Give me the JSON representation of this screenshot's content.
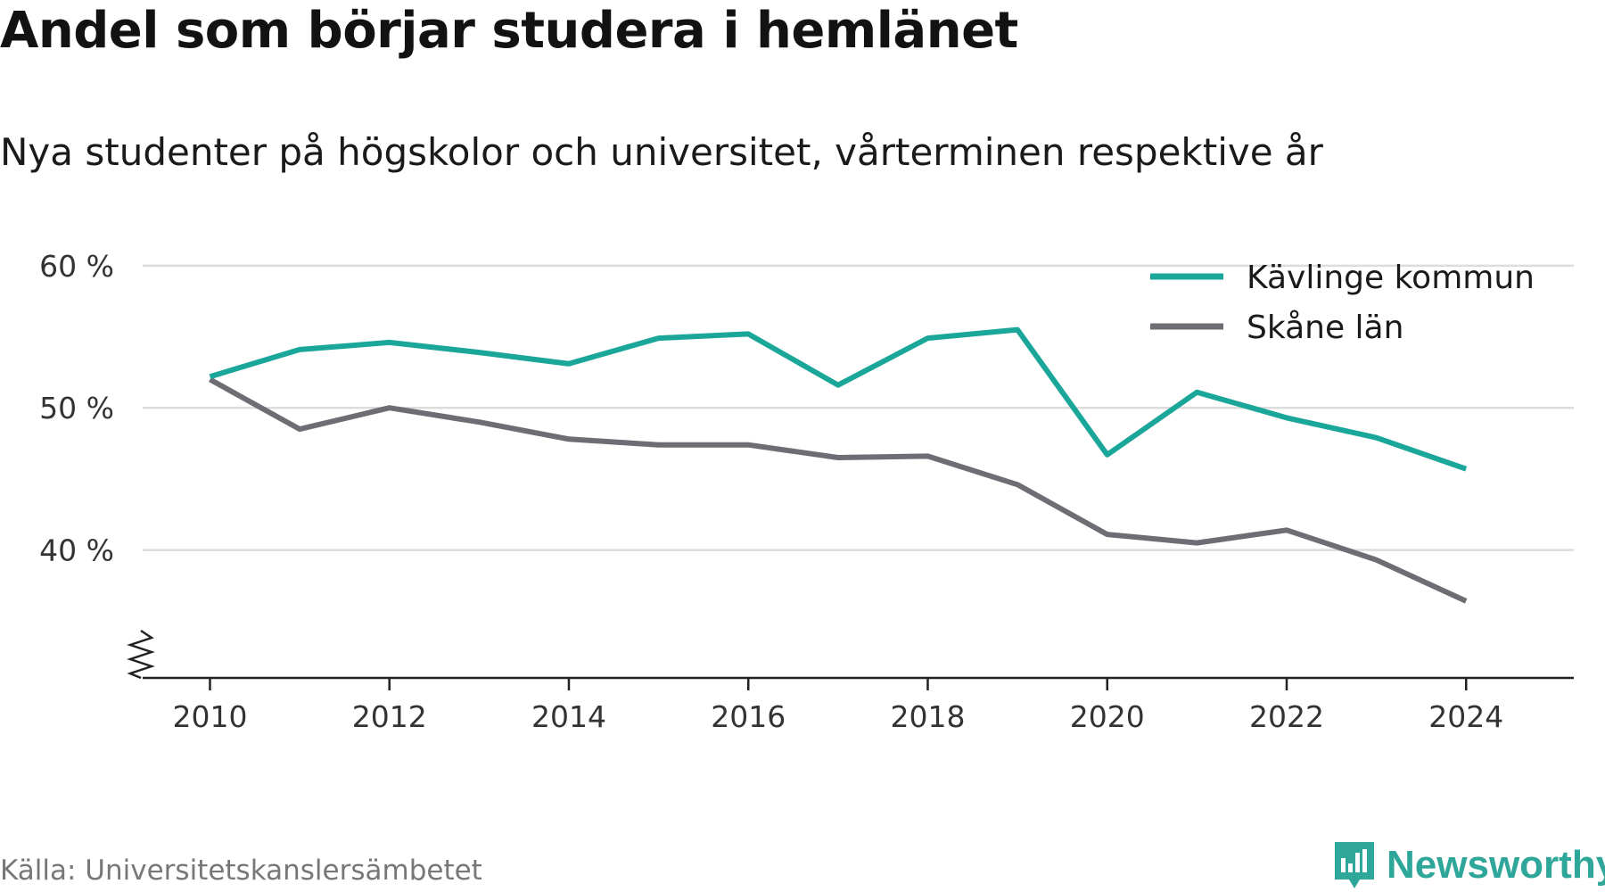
{
  "header": {
    "title": "Andel som börjar studera i hemlänet",
    "subtitle": "Nya studenter på högskolor och universitet, vårterminen respektive år"
  },
  "footer": {
    "source": "Källa: Universitetskanslersämbetet",
    "brand": "Newsworthy"
  },
  "colors": {
    "kavlinge": "#1aa79a",
    "skane": "#6e6d73",
    "grid": "#dcdcdc",
    "axis": "#222222",
    "brand": "#2ea79a"
  },
  "icons": {
    "brand_logo": "bar-chart-speech-bubble-icon",
    "axis_break": "zigzag-axis-break-icon"
  },
  "chart_data": {
    "type": "line",
    "title": "Andel som börjar studera i hemlänet",
    "subtitle": "Nya studenter på högskolor och universitet, vårterminen respektive år",
    "xlabel": "",
    "ylabel": "",
    "x": [
      2010,
      2011,
      2012,
      2013,
      2014,
      2015,
      2016,
      2017,
      2018,
      2019,
      2020,
      2021,
      2022,
      2023,
      2024
    ],
    "x_ticks": [
      "2010",
      "2012",
      "2014",
      "2016",
      "2018",
      "2020",
      "2022",
      "2024"
    ],
    "y_ticks": [
      "40 %",
      "50 %",
      "60 %"
    ],
    "y_tick_values": [
      40,
      50,
      60
    ],
    "ylim": [
      31,
      62
    ],
    "xlim": [
      2009.25,
      2025.2
    ],
    "grid": true,
    "axis_break": true,
    "legend_position": "top-right",
    "series": [
      {
        "name": "Kävlinge kommun",
        "color": "#1aa79a",
        "values": [
          52.2,
          54.1,
          54.6,
          53.9,
          53.1,
          54.9,
          55.2,
          51.6,
          54.9,
          55.5,
          46.7,
          51.1,
          49.3,
          47.9,
          45.7
        ]
      },
      {
        "name": "Skåne län",
        "color": "#6e6d73",
        "values": [
          52.0,
          48.5,
          50.0,
          49.0,
          47.8,
          47.4,
          47.4,
          46.5,
          46.6,
          44.6,
          41.1,
          40.5,
          41.4,
          39.3,
          36.4
        ]
      }
    ]
  }
}
